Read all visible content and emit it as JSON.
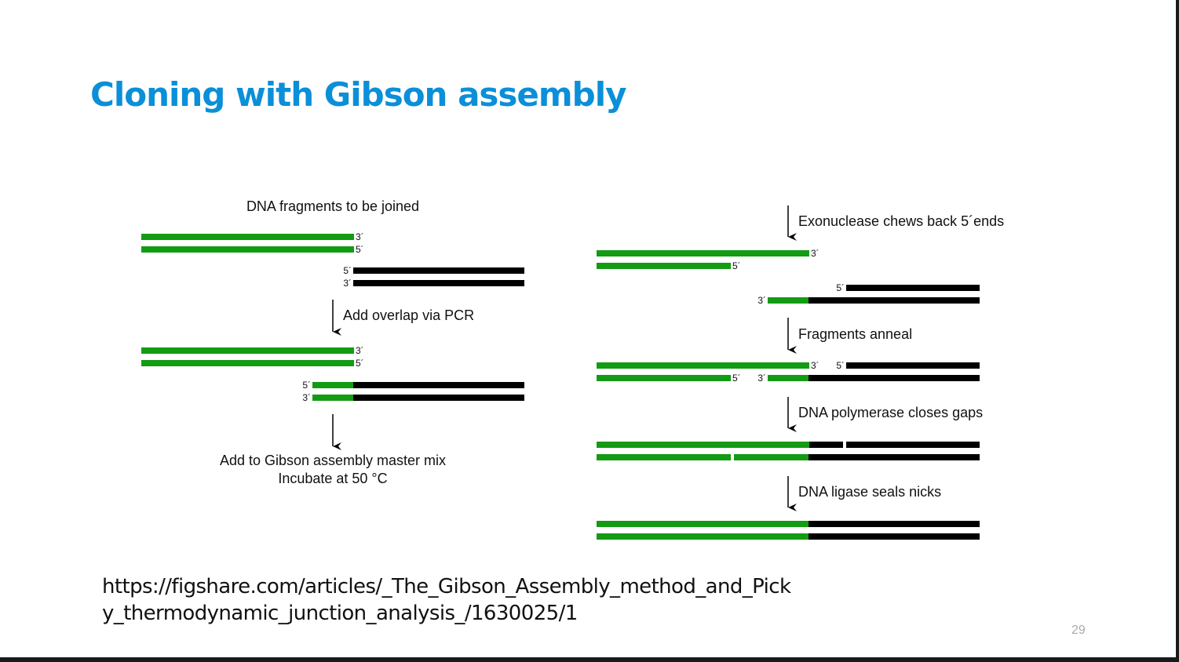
{
  "slide": {
    "title": "Cloning with Gibson assembly",
    "source_url": "https://figshare.com/articles/_The_Gibson_Assembly_method_and_Picky_thermodynamic_junction_analysis_/1630025/1",
    "page_number": "29"
  },
  "diagram": {
    "colors": {
      "green": "#149b14",
      "black": "#000000",
      "arrow": "#000000"
    },
    "left_panel": {
      "heading": "DNA fragments to be joined",
      "step_1": "Add overlap via PCR",
      "final_line_1": "Add to Gibson assembly master mix",
      "final_line_2": "Incubate at 50 °C"
    },
    "right_panel": {
      "step_1": "Exonuclease chews back 5´ends",
      "step_2": "Fragments anneal",
      "step_3": "DNA polymerase closes gaps",
      "step_4": "DNA ligase seals nicks"
    },
    "end_labels": {
      "three_prime": "3´",
      "five_prime": "5´"
    }
  }
}
